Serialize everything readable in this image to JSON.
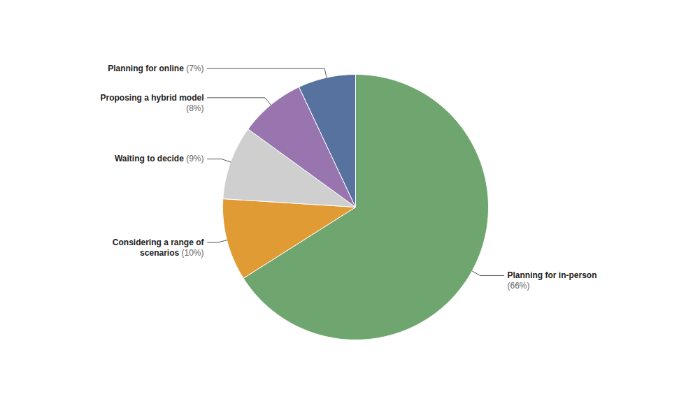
{
  "chart_data": {
    "type": "pie",
    "categories": [
      "Planning for in-person",
      "Considering a range of scenarios",
      "Waiting to decide",
      "Proposing a hybrid model",
      "Planning for online"
    ],
    "values": [
      66,
      10,
      9,
      8,
      7
    ],
    "value_labels": [
      "(66%)",
      "(10%)",
      "(9%)",
      "(8%)",
      "(7%)"
    ],
    "colors": [
      "#6fa56f",
      "#e19b35",
      "#cfcfcf",
      "#9975b0",
      "#5872a0"
    ],
    "data_labels": true
  }
}
